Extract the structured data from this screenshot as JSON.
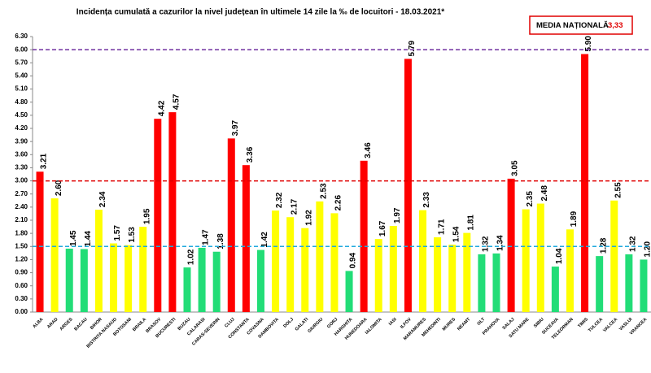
{
  "chart_data": {
    "type": "bar",
    "title": "Incidența cumulată a cazurilor la nivel județean în ultimele 14 zile la ‰ de locuitori - 18.03.2021*",
    "national_average": {
      "label": "MEDIA NAȚIONALĂ",
      "value_label": "3,33"
    },
    "categories": [
      "ALBA",
      "ARAD",
      "ARGES",
      "BACAU",
      "BIHOR",
      "BISTRITA NASAUD",
      "BOTOSANI",
      "BRAILA",
      "BRASOV",
      "BUCURESTI",
      "BUZAU",
      "CALARASI",
      "CARAS-SEVERIN",
      "CLUJ",
      "CONSTANTA",
      "COVASNA",
      "DAMBOVITA",
      "DOLJ",
      "GALATI",
      "GIURGIU",
      "GORJ",
      "HARGHITA",
      "HUNEDOARA",
      "IALOMITA",
      "IASI",
      "ILFOV",
      "MARAMURES",
      "MEHEDINTI",
      "MURES",
      "NEAMT",
      "OLT",
      "PRAHOVA",
      "SALAJ",
      "SATU MARE",
      "SIBIU",
      "SUCEAVA",
      "TELEORMAN",
      "TIMIS",
      "TULCEA",
      "VALCEA",
      "VASLUI",
      "VRANCEA"
    ],
    "values": [
      3.21,
      2.6,
      1.45,
      1.44,
      2.34,
      1.57,
      1.53,
      1.95,
      4.42,
      4.57,
      1.02,
      1.47,
      1.38,
      3.97,
      3.36,
      1.42,
      2.32,
      2.17,
      1.92,
      2.53,
      2.26,
      0.94,
      3.46,
      1.67,
      1.97,
      5.79,
      2.33,
      1.71,
      1.54,
      1.81,
      1.32,
      1.34,
      3.05,
      2.35,
      2.48,
      1.04,
      1.89,
      5.9,
      1.28,
      2.55,
      1.32,
      1.2
    ],
    "value_labels": [
      "3.21",
      "2.60",
      "1.45",
      "1.44",
      "2.34",
      "1.57",
      "1.53",
      "1.95",
      "4.42",
      "4.57",
      "1.02",
      "1.47",
      "1.38",
      "3.97",
      "3.36",
      "1.42",
      "2.32",
      "2.17",
      "1.92",
      "2.53",
      "2.26",
      "0.94",
      "3.46",
      "1.67",
      "1.97",
      "5.79",
      "2.33",
      "1.71",
      "1.54",
      "1.81",
      "1.32",
      "1.34",
      "3.05",
      "2.35",
      "2.48",
      "1.04",
      "1.89",
      "5.90",
      "1.28",
      "2.55",
      "1.32",
      "1.20"
    ],
    "colors": [
      "#ff0000",
      "#ffff00",
      "#22dd77",
      "#22dd77",
      "#ffff00",
      "#ffff00",
      "#ffff00",
      "#ffff00",
      "#ff0000",
      "#ff0000",
      "#22dd77",
      "#22dd77",
      "#22dd77",
      "#ff0000",
      "#ff0000",
      "#22dd77",
      "#ffff00",
      "#ffff00",
      "#ffff00",
      "#ffff00",
      "#ffff00",
      "#22dd77",
      "#ff0000",
      "#ffff00",
      "#ffff00",
      "#ff0000",
      "#ffff00",
      "#ffff00",
      "#ffff00",
      "#ffff00",
      "#22dd77",
      "#22dd77",
      "#ff0000",
      "#ffff00",
      "#ffff00",
      "#22dd77",
      "#ffff00",
      "#ff0000",
      "#22dd77",
      "#ffff00",
      "#22dd77",
      "#22dd77"
    ],
    "ylim": [
      0,
      6.3
    ],
    "yticks": [
      {
        "value": 0,
        "label": "0.00"
      },
      {
        "value": 0.3,
        "label": "0.30"
      },
      {
        "value": 0.6,
        "label": "0.60"
      },
      {
        "value": 0.9,
        "label": "0.90"
      },
      {
        "value": 1.2,
        "label": "1.20"
      },
      {
        "value": 1.5,
        "label": "1.50"
      },
      {
        "value": 1.8,
        "label": "1.80"
      },
      {
        "value": 2.1,
        "label": "2.10"
      },
      {
        "value": 2.4,
        "label": "2.40"
      },
      {
        "value": 2.7,
        "label": "2.70"
      },
      {
        "value": 3,
        "label": "3.00"
      },
      {
        "value": 3.3,
        "label": "3.30"
      },
      {
        "value": 3.6,
        "label": "3.60"
      },
      {
        "value": 3.9,
        "label": "3.90"
      },
      {
        "value": 4.2,
        "label": "4.20"
      },
      {
        "value": 4.5,
        "label": "4.50"
      },
      {
        "value": 4.8,
        "label": "4.80"
      },
      {
        "value": 5.1,
        "label": "5.10"
      },
      {
        "value": 5.4,
        "label": "5.40"
      },
      {
        "value": 5.7,
        "label": "5.70"
      },
      {
        "value": 6,
        "label": "6.00"
      },
      {
        "value": 6.3,
        "label": "6.30"
      }
    ],
    "reference_lines": [
      {
        "value": 6,
        "color": "#7030a0"
      },
      {
        "value": 3,
        "color": "#e00000"
      },
      {
        "value": 1.5,
        "color": "#22aadd"
      }
    ],
    "grid": false
  }
}
